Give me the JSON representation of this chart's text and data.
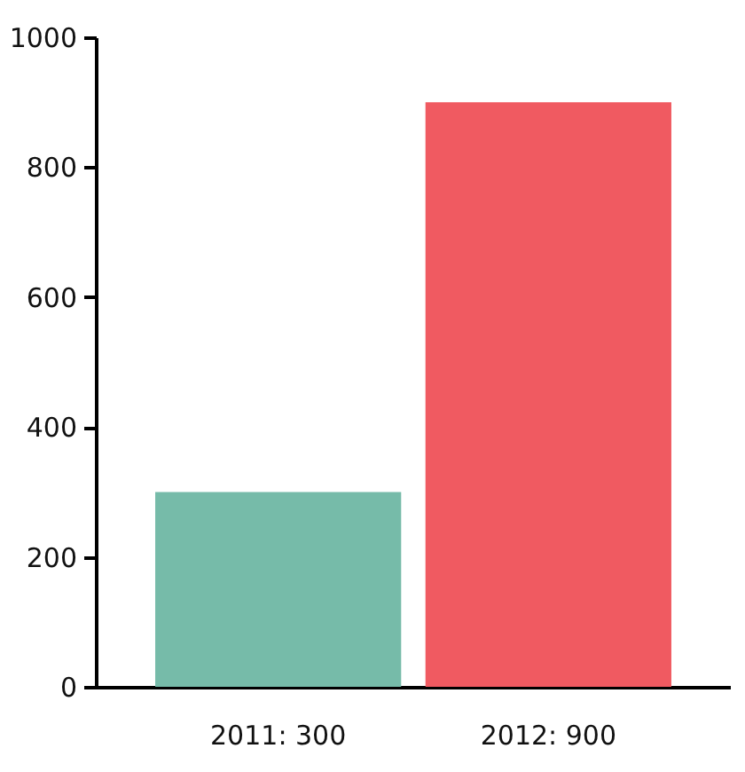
{
  "chart_data": {
    "type": "bar",
    "categories": [
      "2011: 300",
      "2012: 900"
    ],
    "values": [
      300,
      900
    ],
    "colors": [
      "#76bba9",
      "#f05a61"
    ],
    "ylim": [
      0,
      1000
    ],
    "yticks": [
      0,
      200,
      400,
      600,
      800,
      1000
    ],
    "grid": false,
    "legend": false
  }
}
